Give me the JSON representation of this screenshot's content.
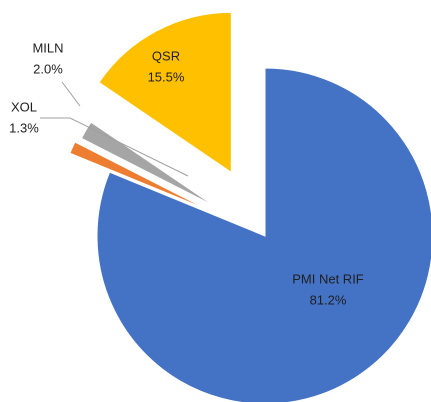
{
  "chart_data": {
    "type": "pie",
    "categories": [
      "PMI Net RIF",
      "XOL",
      "MILN",
      "QSR"
    ],
    "values": [
      81.2,
      1.3,
      2.0,
      15.5
    ],
    "value_labels": [
      "81.2%",
      "1.3%",
      "2.0%",
      "15.5%"
    ],
    "colors": [
      "#4472c4",
      "#ed7d31",
      "#a5a5a5",
      "#ffc000"
    ]
  }
}
